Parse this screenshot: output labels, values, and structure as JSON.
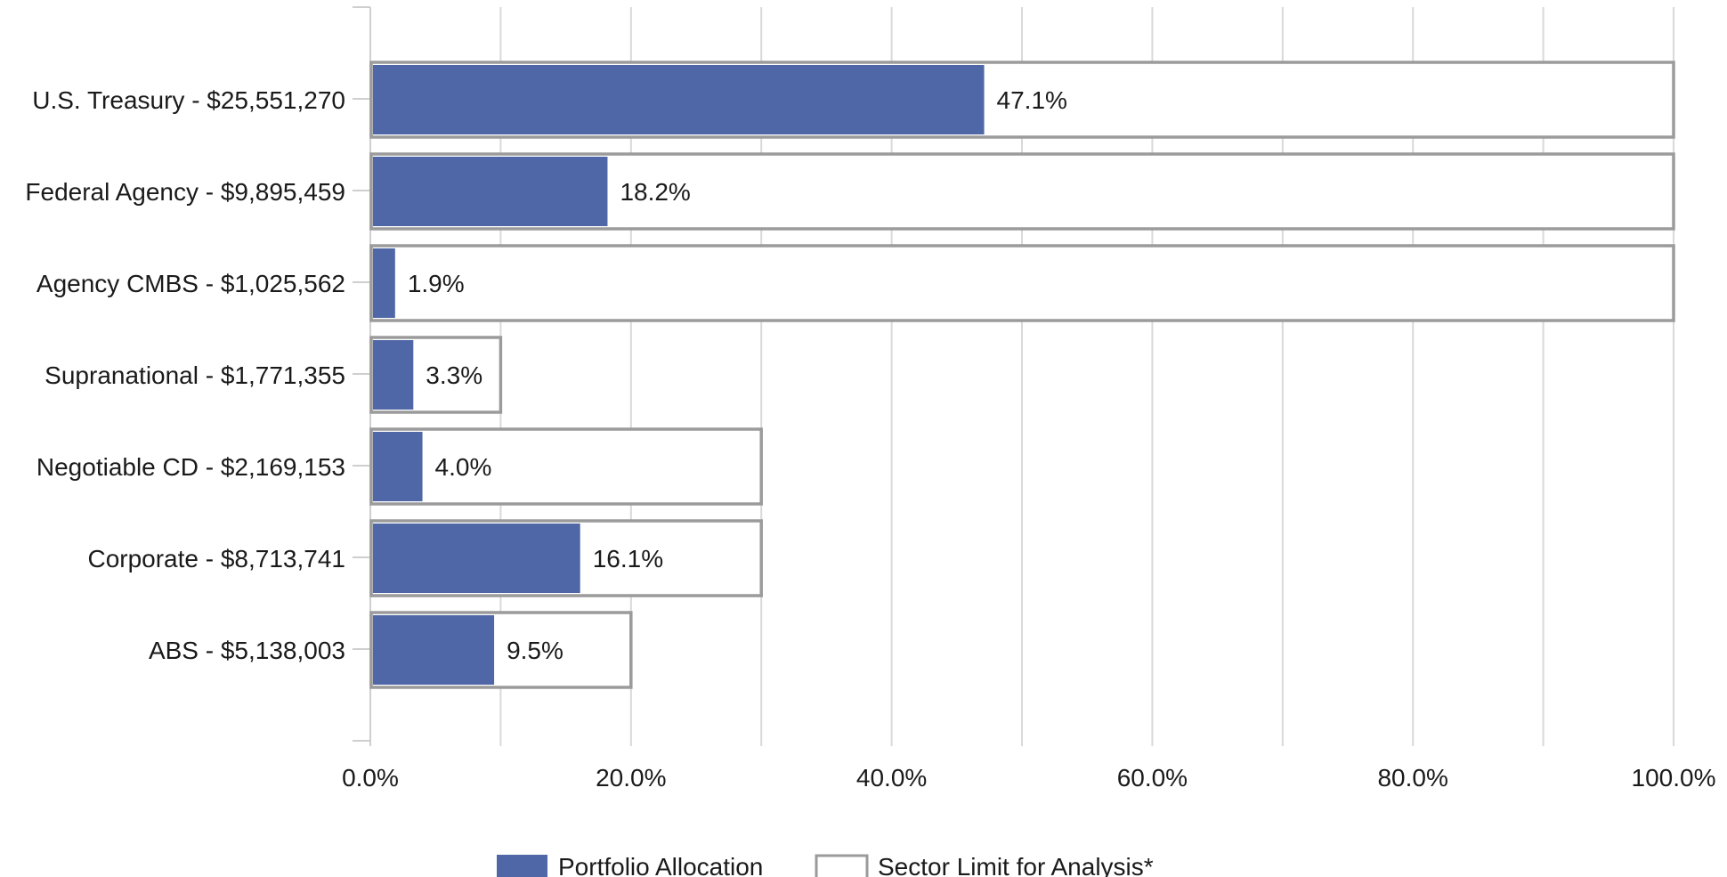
{
  "chart_data": {
    "type": "bar",
    "orientation": "horizontal",
    "title": "",
    "xlabel": "",
    "ylabel": "",
    "xlim": [
      0,
      100
    ],
    "x_tick_values": [
      0,
      20,
      40,
      60,
      80,
      100
    ],
    "x_tick_labels": [
      "0.0%",
      "20.0%",
      "40.0%",
      "60.0%",
      "80.0%",
      "100.0%"
    ],
    "grid": true,
    "legend_position": "bottom-center",
    "categories": [
      "U.S. Treasury - $25,551,270",
      "Federal Agency - $9,895,459",
      "Agency CMBS - $1,025,562",
      "Supranational - $1,771,355",
      "Negotiable CD - $2,169,153",
      "Corporate - $8,713,741",
      "ABS - $5,138,003"
    ],
    "series": [
      {
        "name": "Portfolio Allocation",
        "values": [
          47.1,
          18.2,
          1.9,
          3.3,
          4.0,
          16.1,
          9.5
        ],
        "labels": [
          "47.1%",
          "18.2%",
          "1.9%",
          "3.3%",
          "4.0%",
          "16.1%",
          "9.5%"
        ],
        "color": "#4f67a6"
      },
      {
        "name": "Sector Limit for Analysis*",
        "values": [
          100,
          100,
          100,
          10,
          30,
          30,
          20
        ],
        "color": "#ffffff",
        "stroke": "#9b9b9b"
      }
    ],
    "gridline_color": "#d9d9d9",
    "axis_color": "#cfcfcf"
  }
}
